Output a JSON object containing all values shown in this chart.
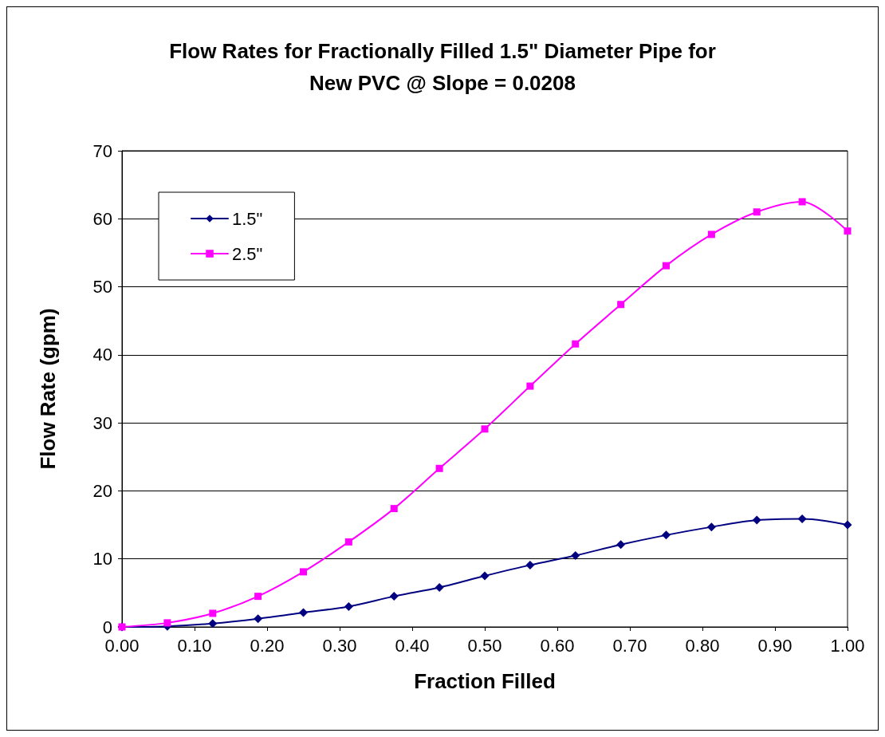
{
  "chart_data": {
    "type": "line",
    "title": "Flow Rates for Fractionally Filled 1.5\" Diameter Pipe for\nNew PVC @ Slope = 0.0208",
    "xlabel": "Fraction Filled",
    "ylabel": "Flow Rate (gpm)",
    "x": [
      0,
      0.0625,
      0.125,
      0.1875,
      0.25,
      0.3125,
      0.375,
      0.4375,
      0.5,
      0.5625,
      0.625,
      0.6875,
      0.75,
      0.8125,
      0.875,
      0.9375,
      1.0
    ],
    "series": [
      {
        "name": "1.5\"",
        "color": "#000080",
        "marker": "diamond",
        "values": [
          0,
          0.1,
          0.5,
          1.2,
          2.1,
          3.0,
          4.5,
          5.8,
          7.5,
          9.1,
          10.5,
          12.1,
          13.5,
          14.7,
          15.7,
          15.9,
          15.0
        ]
      },
      {
        "name": "2.5\"",
        "color": "#ff00ff",
        "marker": "square",
        "values": [
          0,
          0.6,
          2.0,
          4.5,
          8.1,
          12.5,
          17.4,
          23.3,
          29.1,
          35.4,
          41.6,
          47.4,
          53.1,
          57.7,
          61.0,
          62.5,
          58.2
        ]
      }
    ],
    "xlim": [
      0,
      1
    ],
    "xticks": [
      {
        "value": 0,
        "label": "0.00"
      },
      {
        "value": 0.1,
        "label": "0.10"
      },
      {
        "value": 0.2,
        "label": "0.20"
      },
      {
        "value": 0.3,
        "label": "0.30"
      },
      {
        "value": 0.4,
        "label": "0.40"
      },
      {
        "value": 0.5,
        "label": "0.50"
      },
      {
        "value": 0.6,
        "label": "0.60"
      },
      {
        "value": 0.7,
        "label": "0.70"
      },
      {
        "value": 0.8,
        "label": "0.80"
      },
      {
        "value": 0.9,
        "label": "0.90"
      },
      {
        "value": 1,
        "label": "1.00"
      }
    ],
    "ylim": [
      0,
      70
    ],
    "yticks": [
      0,
      10,
      20,
      30,
      40,
      50,
      60,
      70
    ],
    "grid": "y",
    "legend": "top left",
    "line_style": "solid"
  }
}
